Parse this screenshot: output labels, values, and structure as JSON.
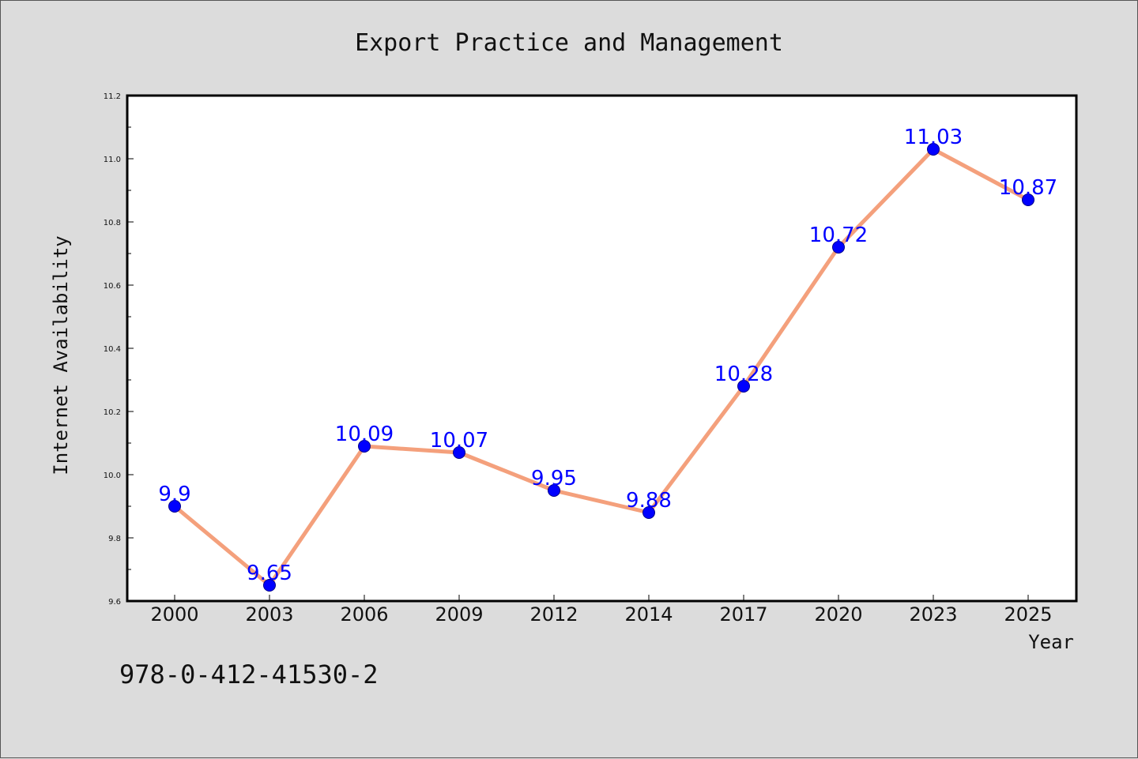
{
  "chart_data": {
    "type": "line",
    "title": "Export Practice and Management",
    "xlabel": "Year",
    "ylabel": "Internet Availability",
    "categories": [
      "2000",
      "2003",
      "2006",
      "2009",
      "2012",
      "2014",
      "2017",
      "2020",
      "2023",
      "2025"
    ],
    "series": [
      {
        "name": "",
        "values": [
          9.9,
          9.65,
          10.09,
          10.07,
          9.95,
          9.88,
          10.28,
          10.72,
          11.03,
          10.87
        ],
        "labels": [
          "9.9",
          "9.65",
          "10.09",
          "10.07",
          "9.95",
          "9.88",
          "10.28",
          "10.72",
          "11.03",
          "10.87"
        ]
      }
    ],
    "ylim": [
      9.6,
      11.2
    ],
    "yticks": [
      "9.6",
      "9.8",
      "10.0",
      "10.2",
      "10.4",
      "10.6",
      "10.8",
      "11.0",
      "11.2"
    ],
    "grid": false,
    "line_color": "#f4a07c",
    "marker_color": "#0000ff",
    "label_color": "#0000ff"
  },
  "footer": {
    "isbn": "978-0-412-41530-2"
  }
}
